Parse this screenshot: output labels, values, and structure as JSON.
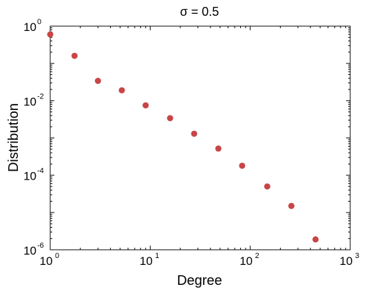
{
  "chart_data": {
    "type": "scatter",
    "title": "σ = 0.5",
    "xlabel": "Degree",
    "ylabel": "Distribution",
    "x_scale": "log",
    "y_scale": "log",
    "xlim": [
      1,
      1000
    ],
    "ylim": [
      1e-06,
      1
    ],
    "x_ticks": [
      {
        "value": 1,
        "base": "10",
        "exp": "0"
      },
      {
        "value": 10,
        "base": "10",
        "exp": "1"
      },
      {
        "value": 100,
        "base": "10",
        "exp": "2"
      },
      {
        "value": 1000,
        "base": "10",
        "exp": "3"
      }
    ],
    "y_ticks": [
      {
        "value": 1,
        "base": "10",
        "exp": "0"
      },
      {
        "value": 0.01,
        "base": "10",
        "exp": "-2"
      },
      {
        "value": 0.0001,
        "base": "10",
        "exp": "-4"
      },
      {
        "value": 1e-06,
        "base": "10",
        "exp": "-6"
      }
    ],
    "grid": false,
    "marker_color": "#c84646",
    "series": [
      {
        "x": [
          1,
          1.75,
          3,
          5.2,
          9,
          15.8,
          27.5,
          48,
          83,
          148,
          258,
          450
        ],
        "y": [
          0.6,
          0.16,
          0.034,
          0.019,
          0.0075,
          0.0034,
          0.0013,
          0.00052,
          0.00018,
          5e-05,
          1.5e-05,
          1.9e-06
        ]
      }
    ]
  }
}
